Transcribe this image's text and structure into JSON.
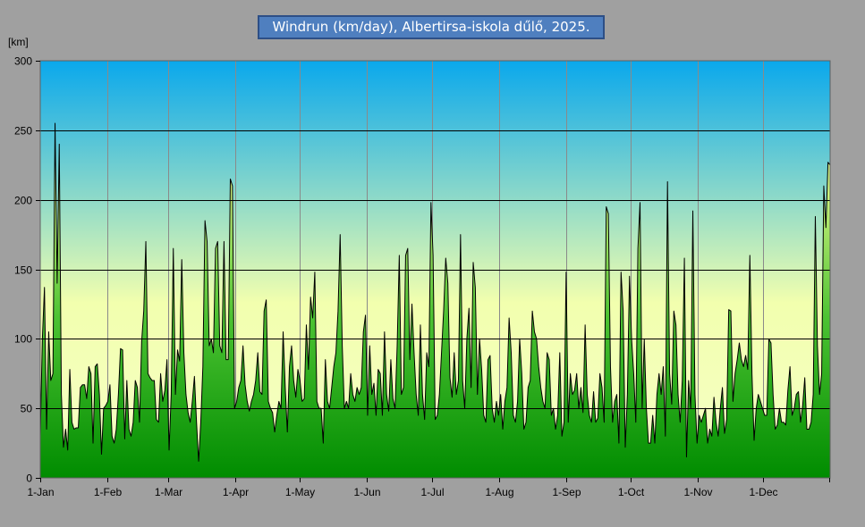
{
  "chart_data": {
    "type": "area",
    "title": "Windrun (km/day), Albertirsa-iskola dűlő, 2025.",
    "ylabel": "[km]",
    "xlabel": "",
    "ylim": [
      0,
      300
    ],
    "yticks": [
      0,
      50,
      100,
      150,
      200,
      250,
      300
    ],
    "xlim_days": [
      1,
      366
    ],
    "xticks": [
      {
        "label": "1-Jan",
        "day": 1
      },
      {
        "label": "1-Feb",
        "day": 32
      },
      {
        "label": "1-Mar",
        "day": 60
      },
      {
        "label": "1-Apr",
        "day": 91
      },
      {
        "label": "1-May",
        "day": 121
      },
      {
        "label": "1-Jun",
        "day": 152
      },
      {
        "label": "1-Jul",
        "day": 182
      },
      {
        "label": "1-Aug",
        "day": 213
      },
      {
        "label": "1-Sep",
        "day": 244
      },
      {
        "label": "1-Oct",
        "day": 274
      },
      {
        "label": "1-Nov",
        "day": 305
      },
      {
        "label": "1-Dec",
        "day": 335
      }
    ],
    "grid": true,
    "legend": "none",
    "series": [
      {
        "values": [
          30,
          100,
          137,
          35,
          105,
          70,
          75,
          255,
          140,
          240,
          60,
          22,
          35,
          20,
          78,
          40,
          35,
          36,
          36,
          65,
          67,
          67,
          57,
          80,
          75,
          25,
          80,
          82,
          60,
          17,
          50,
          52,
          55,
          67,
          30,
          25,
          35,
          60,
          93,
          92,
          28,
          70,
          35,
          30,
          40,
          70,
          65,
          40,
          98,
          120,
          170,
          75,
          72,
          70,
          70,
          42,
          40,
          75,
          55,
          63,
          85,
          20,
          60,
          165,
          60,
          92,
          84,
          157,
          90,
          60,
          47,
          40,
          55,
          73,
          40,
          12,
          40,
          80,
          185,
          170,
          95,
          100,
          90,
          165,
          170,
          95,
          90,
          170,
          85,
          85,
          215,
          210,
          50,
          55,
          65,
          70,
          95,
          67,
          55,
          48,
          55,
          60,
          70,
          90,
          62,
          60,
          120,
          128,
          55,
          50,
          47,
          33,
          45,
          55,
          50,
          105,
          65,
          33,
          80,
          95,
          70,
          58,
          78,
          70,
          55,
          57,
          110,
          78,
          130,
          115,
          148,
          55,
          50,
          50,
          25,
          85,
          55,
          50,
          65,
          80,
          90,
          120,
          175,
          95,
          50,
          55,
          50,
          75,
          60,
          55,
          65,
          60,
          65,
          105,
          117,
          45,
          95,
          60,
          68,
          45,
          78,
          75,
          45,
          105,
          60,
          48,
          85,
          57,
          50,
          95,
          160,
          60,
          65,
          160,
          165,
          85,
          125,
          90,
          60,
          45,
          110,
          60,
          42,
          90,
          80,
          198,
          160,
          42,
          45,
          60,
          90,
          120,
          158,
          140,
          72,
          58,
          90,
          60,
          70,
          175,
          70,
          50,
          100,
          122,
          65,
          155,
          137,
          60,
          100,
          78,
          45,
          40,
          85,
          88,
          50,
          40,
          55,
          45,
          60,
          35,
          55,
          65,
          115,
          90,
          45,
          40,
          55,
          100,
          75,
          35,
          40,
          65,
          70,
          120,
          105,
          100,
          80,
          65,
          55,
          50,
          90,
          85,
          45,
          50,
          35,
          45,
          90,
          30,
          40,
          148,
          40,
          75,
          60,
          63,
          75,
          50,
          65,
          47,
          110,
          60,
          45,
          40,
          62,
          40,
          43,
          75,
          65,
          40,
          195,
          190,
          80,
          40,
          55,
          60,
          25,
          148,
          120,
          22,
          60,
          145,
          100,
          75,
          40,
          165,
          198,
          50,
          100,
          50,
          25,
          25,
          45,
          25,
          60,
          75,
          60,
          80,
          30,
          213,
          75,
          53,
          120,
          110,
          60,
          40,
          70,
          158,
          15,
          70,
          50,
          192,
          60,
          25,
          45,
          40,
          45,
          50,
          25,
          35,
          30,
          58,
          40,
          30,
          50,
          65,
          32,
          42,
          121,
          120,
          55,
          75,
          85,
          97,
          85,
          80,
          88,
          78,
          160,
          75,
          27,
          50,
          60,
          55,
          50,
          45,
          45,
          100,
          97,
          60,
          35,
          38,
          50,
          40,
          40,
          38,
          63,
          80,
          45,
          50,
          60,
          62,
          40,
          52,
          72,
          35,
          35,
          40,
          60,
          188,
          95,
          60,
          75,
          210,
          180,
          227,
          225
        ]
      }
    ]
  }
}
